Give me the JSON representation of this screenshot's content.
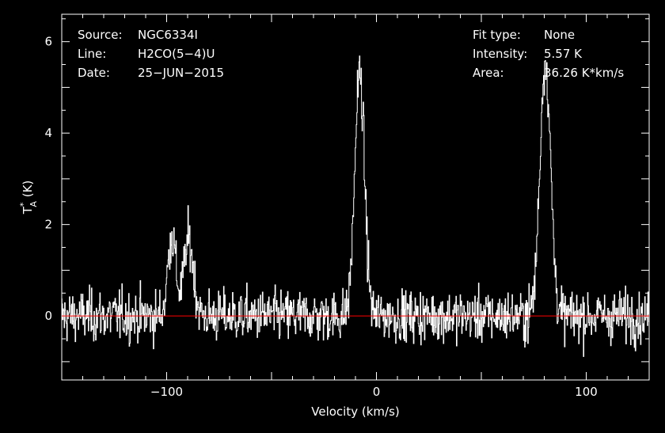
{
  "header_left": [
    {
      "key": "Source:",
      "value": "NGC6334I"
    },
    {
      "key": "Line:",
      "value": "H2CO(5−4)U"
    },
    {
      "key": "Date:",
      "value": "25−JUN−2015"
    }
  ],
  "header_right": [
    {
      "key": "Fit type:",
      "value": "None"
    },
    {
      "key": "Intensity:",
      "value": "5.57 K"
    },
    {
      "key": "Area:",
      "value": "36.26 K*km/s"
    }
  ],
  "colors": {
    "background": "#000000",
    "trace": "#ffffff",
    "baseline": "#ff0000",
    "frame": "#ffffff"
  },
  "chart_data": {
    "type": "line",
    "xlabel": "Velocity (km/s)",
    "ylabel_main": "T",
    "ylabel_sup": "*",
    "ylabel_sub": "A",
    "ylabel_tail": " (K)",
    "xlim": [
      -150,
      130
    ],
    "ylim": [
      -1.4,
      6.6
    ],
    "xticks_major": [
      -100,
      0,
      100
    ],
    "xtick_labels": [
      "−100",
      "0",
      "100"
    ],
    "yticks_major": [
      0,
      2,
      4,
      6
    ],
    "ytick_labels": [
      "0",
      "2",
      "4",
      "6"
    ],
    "baseline_y": 0,
    "noise_rms": 0.28,
    "channel_width_kms": 0.25,
    "lines": [
      {
        "center": -97.5,
        "peak": 1.75,
        "fwhm": 4.5
      },
      {
        "center": -89.5,
        "peak": 1.65,
        "fwhm": 5.5
      },
      {
        "center": -8.0,
        "peak": 5.3,
        "fwhm": 5.5
      },
      {
        "center": 80.5,
        "peak": 5.57,
        "fwhm": 6.0
      }
    ]
  }
}
